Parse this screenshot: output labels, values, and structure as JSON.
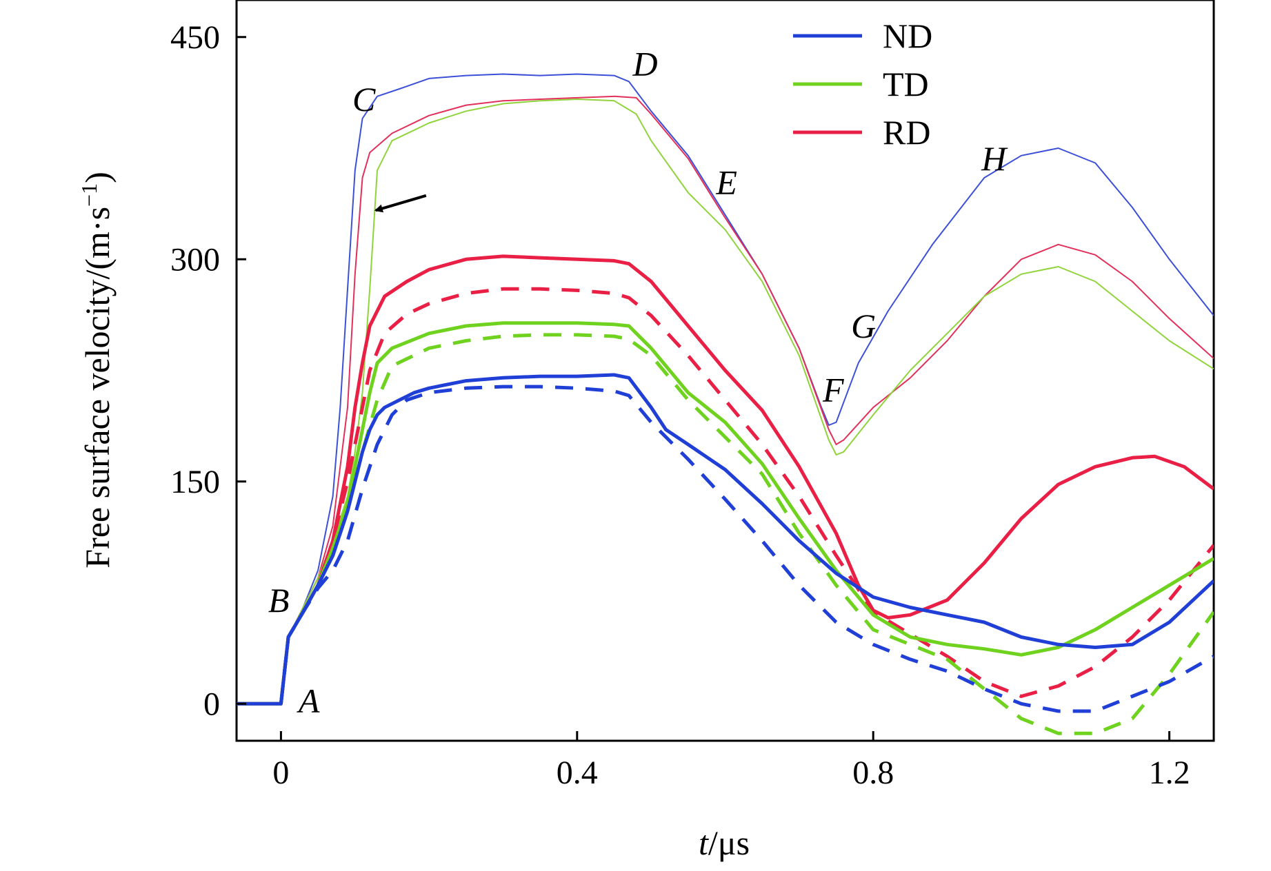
{
  "chart_data": {
    "type": "line",
    "xlabel_italic": "t",
    "xlabel_unit": "/μs",
    "ylabel_text": "Free surface velocity/(m·s",
    "ylabel_sup": "−1",
    "ylabel_close": ")",
    "xlim": [
      -0.06,
      1.26
    ],
    "ylim": [
      -25,
      475
    ],
    "xticks": [
      0,
      0.4,
      0.8,
      1.2
    ],
    "xtick_labels": [
      "0",
      "0.4",
      "0.8",
      "1.2"
    ],
    "yticks": [
      0,
      150,
      300,
      450
    ],
    "ytick_labels": [
      "0",
      "150",
      "300",
      "450"
    ],
    "grid": false,
    "legend": {
      "position": "top-right",
      "entries": [
        {
          "name": "ND",
          "color": "#1f3fd6"
        },
        {
          "name": "TD",
          "color": "#6fd21e"
        },
        {
          "name": "RD",
          "color": "#ea1f45"
        }
      ]
    },
    "annotations": [
      {
        "text": "A",
        "x": 0.038,
        "y": 2
      },
      {
        "text": "B",
        "x": -0.003,
        "y": 70
      },
      {
        "text": "C",
        "x": 0.112,
        "y": 408
      },
      {
        "text": "D",
        "x": 0.492,
        "y": 432
      },
      {
        "text": "E",
        "x": 0.602,
        "y": 352
      },
      {
        "text": "F",
        "x": 0.746,
        "y": 212
      },
      {
        "text": "G",
        "x": 0.787,
        "y": 255
      },
      {
        "text": "H",
        "x": 0.963,
        "y": 368
      }
    ],
    "arrow": {
      "from": [
        0.196,
        343
      ],
      "to": [
        0.128,
        333
      ]
    },
    "series": [
      {
        "group": "ND",
        "style": "thin",
        "color": "#3b4fd8",
        "width": 2,
        "x": [
          -0.06,
          0.0,
          0.01,
          0.03,
          0.05,
          0.07,
          0.08,
          0.09,
          0.1,
          0.11,
          0.13,
          0.16,
          0.2,
          0.25,
          0.3,
          0.35,
          0.4,
          0.45,
          0.47,
          0.5,
          0.55,
          0.6,
          0.65,
          0.7,
          0.73,
          0.74,
          0.75,
          0.78,
          0.82,
          0.88,
          0.95,
          1.0,
          1.05,
          1.1,
          1.15,
          1.2,
          1.26
        ],
        "y": [
          0,
          0,
          45,
          65,
          90,
          140,
          200,
          280,
          360,
          395,
          410,
          415,
          422,
          424,
          425,
          424,
          425,
          424,
          420,
          400,
          370,
          330,
          290,
          240,
          200,
          188,
          190,
          230,
          265,
          310,
          355,
          370,
          375,
          365,
          335,
          300,
          262
        ]
      },
      {
        "group": "RD",
        "style": "thin",
        "color": "#e2305a",
        "width": 2,
        "x": [
          -0.06,
          0.0,
          0.01,
          0.03,
          0.05,
          0.07,
          0.09,
          0.1,
          0.11,
          0.12,
          0.15,
          0.2,
          0.25,
          0.3,
          0.35,
          0.4,
          0.45,
          0.48,
          0.5,
          0.55,
          0.6,
          0.65,
          0.7,
          0.74,
          0.75,
          0.76,
          0.8,
          0.85,
          0.9,
          0.95,
          1.0,
          1.05,
          1.1,
          1.15,
          1.2,
          1.26
        ],
        "y": [
          0,
          0,
          45,
          65,
          85,
          120,
          200,
          290,
          355,
          372,
          385,
          397,
          404,
          407,
          408,
          409,
          410,
          409,
          398,
          368,
          328,
          290,
          240,
          185,
          175,
          178,
          200,
          220,
          245,
          275,
          300,
          310,
          303,
          285,
          260,
          233
        ]
      },
      {
        "group": "TD",
        "style": "thin",
        "color": "#8fd43a",
        "width": 2,
        "x": [
          -0.06,
          0.0,
          0.01,
          0.03,
          0.05,
          0.07,
          0.09,
          0.1,
          0.11,
          0.12,
          0.13,
          0.15,
          0.2,
          0.25,
          0.3,
          0.35,
          0.4,
          0.45,
          0.48,
          0.5,
          0.55,
          0.6,
          0.65,
          0.7,
          0.74,
          0.75,
          0.76,
          0.8,
          0.85,
          0.9,
          0.95,
          1.0,
          1.05,
          1.1,
          1.15,
          1.2,
          1.26
        ],
        "y": [
          0,
          0,
          45,
          65,
          85,
          110,
          140,
          170,
          210,
          280,
          360,
          380,
          392,
          400,
          405,
          407,
          408,
          407,
          398,
          380,
          345,
          320,
          285,
          235,
          178,
          168,
          170,
          195,
          225,
          250,
          275,
          290,
          295,
          285,
          265,
          245,
          226
        ]
      },
      {
        "group": "RD",
        "style": "solid",
        "color": "#ea1f45",
        "width": 5,
        "x": [
          -0.06,
          0.0,
          0.01,
          0.03,
          0.05,
          0.07,
          0.09,
          0.1,
          0.11,
          0.12,
          0.14,
          0.17,
          0.2,
          0.25,
          0.3,
          0.35,
          0.4,
          0.45,
          0.47,
          0.5,
          0.55,
          0.6,
          0.65,
          0.7,
          0.75,
          0.78,
          0.8,
          0.82,
          0.85,
          0.9,
          0.95,
          1.0,
          1.05,
          1.1,
          1.15,
          1.18,
          1.22,
          1.26
        ],
        "y": [
          0,
          0,
          45,
          62,
          80,
          110,
          160,
          200,
          230,
          255,
          275,
          285,
          293,
          300,
          302,
          301,
          300,
          299,
          297,
          285,
          255,
          225,
          198,
          160,
          115,
          80,
          63,
          58,
          60,
          70,
          95,
          125,
          148,
          160,
          166,
          167,
          160,
          145
        ]
      },
      {
        "group": "RD",
        "style": "dashed",
        "color": "#ea1f45",
        "width": 5,
        "x": [
          0.0,
          0.01,
          0.03,
          0.05,
          0.07,
          0.09,
          0.1,
          0.11,
          0.12,
          0.14,
          0.17,
          0.2,
          0.25,
          0.3,
          0.35,
          0.4,
          0.45,
          0.47,
          0.5,
          0.55,
          0.6,
          0.65,
          0.7,
          0.75,
          0.8,
          0.85,
          0.9,
          0.95,
          1.0,
          1.05,
          1.1,
          1.15,
          1.2,
          1.26
        ],
        "y": [
          0,
          45,
          62,
          80,
          110,
          150,
          175,
          200,
          225,
          250,
          263,
          270,
          277,
          280,
          280,
          279,
          277,
          274,
          262,
          235,
          205,
          175,
          140,
          100,
          62,
          47,
          32,
          15,
          5,
          12,
          25,
          45,
          70,
          107
        ]
      },
      {
        "group": "TD",
        "style": "solid",
        "color": "#6fd21e",
        "width": 5,
        "x": [
          -0.06,
          0.0,
          0.01,
          0.03,
          0.05,
          0.07,
          0.09,
          0.1,
          0.11,
          0.12,
          0.13,
          0.15,
          0.2,
          0.25,
          0.3,
          0.35,
          0.4,
          0.45,
          0.47,
          0.5,
          0.55,
          0.6,
          0.65,
          0.7,
          0.75,
          0.8,
          0.85,
          0.9,
          0.95,
          1.0,
          1.05,
          1.1,
          1.15,
          1.2,
          1.26
        ],
        "y": [
          0,
          0,
          45,
          62,
          80,
          105,
          135,
          160,
          185,
          210,
          230,
          240,
          250,
          255,
          257,
          257,
          257,
          256,
          255,
          240,
          210,
          190,
          162,
          125,
          90,
          60,
          45,
          40,
          37,
          33,
          38,
          50,
          65,
          80,
          98
        ]
      },
      {
        "group": "TD",
        "style": "dashed",
        "color": "#6fd21e",
        "width": 5,
        "x": [
          0.0,
          0.01,
          0.03,
          0.05,
          0.07,
          0.09,
          0.11,
          0.13,
          0.15,
          0.2,
          0.25,
          0.3,
          0.35,
          0.4,
          0.45,
          0.47,
          0.5,
          0.55,
          0.6,
          0.65,
          0.7,
          0.75,
          0.8,
          0.85,
          0.9,
          0.95,
          1.0,
          1.05,
          1.1,
          1.15,
          1.2,
          1.26
        ],
        "y": [
          0,
          45,
          62,
          80,
          100,
          130,
          170,
          205,
          228,
          240,
          245,
          248,
          249,
          249,
          248,
          246,
          235,
          205,
          180,
          155,
          115,
          80,
          50,
          40,
          30,
          10,
          -10,
          -20,
          -20,
          -10,
          20,
          62
        ]
      },
      {
        "group": "ND",
        "style": "solid",
        "color": "#1f3fd6",
        "width": 5,
        "x": [
          -0.06,
          0.0,
          0.01,
          0.03,
          0.05,
          0.07,
          0.09,
          0.1,
          0.11,
          0.12,
          0.13,
          0.14,
          0.16,
          0.18,
          0.2,
          0.25,
          0.3,
          0.35,
          0.4,
          0.45,
          0.47,
          0.5,
          0.52,
          0.55,
          0.6,
          0.65,
          0.7,
          0.75,
          0.8,
          0.85,
          0.9,
          0.95,
          1.0,
          1.05,
          1.1,
          1.15,
          1.2,
          1.26
        ],
        "y": [
          0,
          0,
          45,
          62,
          80,
          100,
          130,
          150,
          170,
          185,
          195,
          200,
          205,
          210,
          213,
          218,
          220,
          221,
          221,
          222,
          220,
          200,
          185,
          175,
          158,
          135,
          110,
          88,
          72,
          65,
          60,
          55,
          45,
          40,
          38,
          40,
          55,
          83
        ]
      },
      {
        "group": "ND",
        "style": "dashed",
        "color": "#1f3fd6",
        "width": 5,
        "x": [
          0.0,
          0.01,
          0.03,
          0.05,
          0.07,
          0.09,
          0.11,
          0.13,
          0.15,
          0.17,
          0.2,
          0.25,
          0.3,
          0.35,
          0.4,
          0.45,
          0.47,
          0.5,
          0.55,
          0.6,
          0.65,
          0.7,
          0.75,
          0.8,
          0.85,
          0.9,
          0.95,
          1.0,
          1.05,
          1.1,
          1.15,
          1.2,
          1.26
        ],
        "y": [
          0,
          45,
          62,
          78,
          90,
          110,
          145,
          175,
          195,
          205,
          210,
          213,
          214,
          214,
          213,
          211,
          208,
          190,
          165,
          138,
          110,
          80,
          55,
          40,
          30,
          22,
          10,
          0,
          -5,
          -5,
          5,
          15,
          32
        ]
      }
    ]
  }
}
